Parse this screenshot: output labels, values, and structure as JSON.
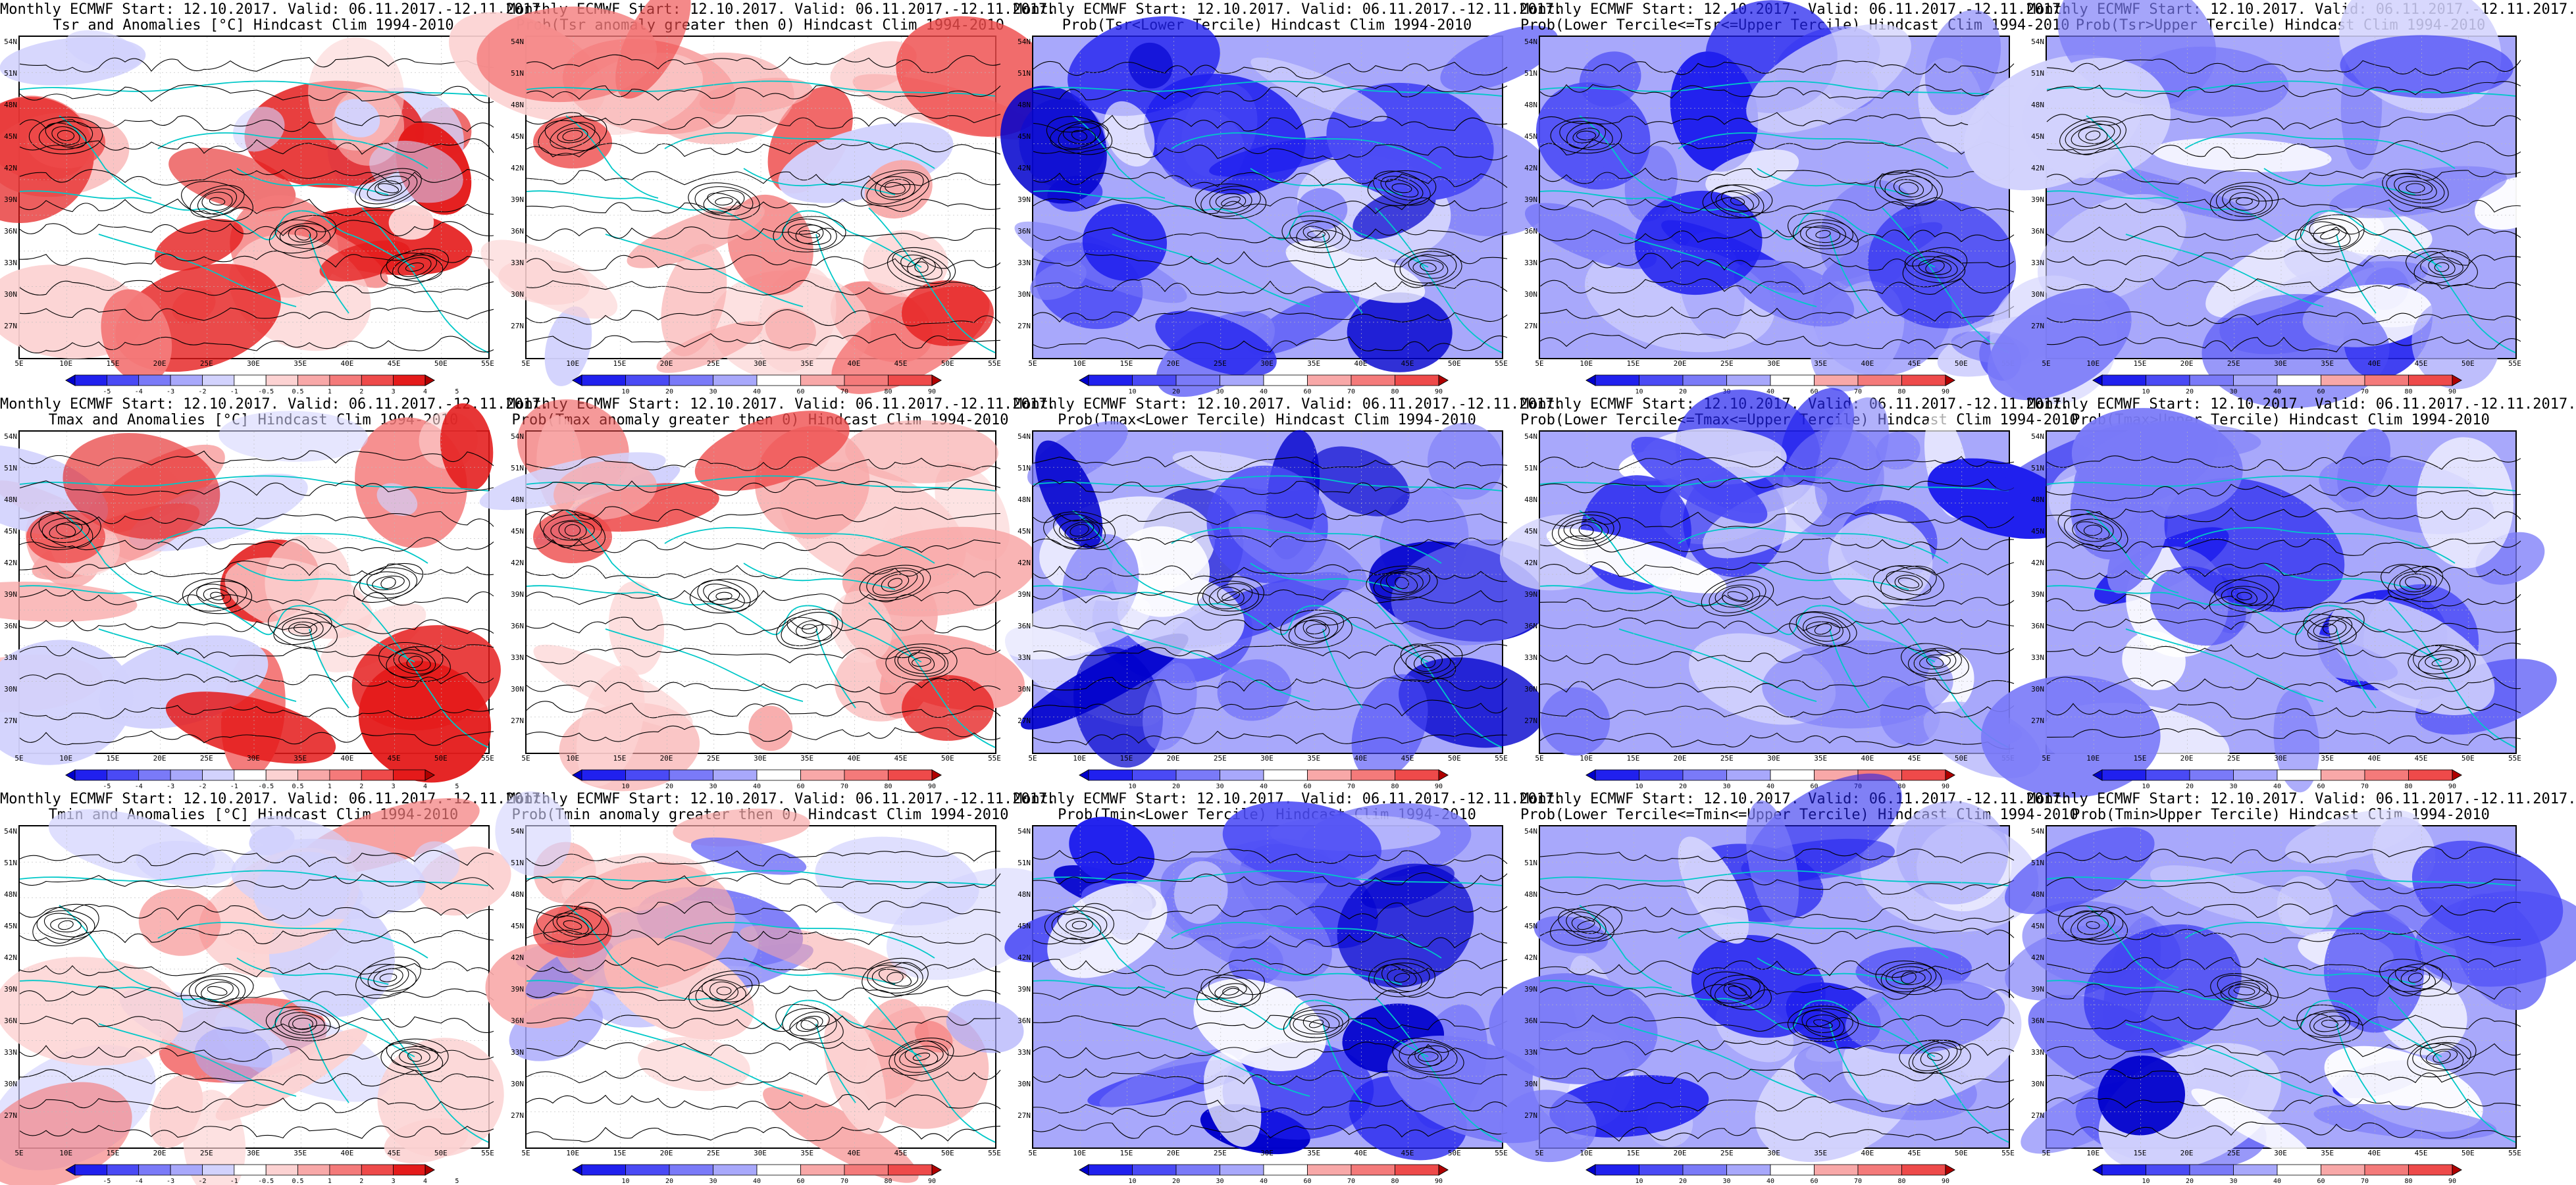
{
  "columns": [
    {
      "key": "mean",
      "colorbar": "diverging",
      "ticks": [
        "-5",
        "-4",
        "-3",
        "-2",
        "-1",
        "-0.5",
        "0.5",
        "1",
        "2",
        "3",
        "4",
        "5"
      ]
    },
    {
      "key": "prob_gt0",
      "colorbar": "probability",
      "ticks": [
        "10",
        "20",
        "30",
        "40",
        "60",
        "70",
        "80",
        "90"
      ]
    },
    {
      "key": "lower",
      "colorbar": "probability",
      "ticks": [
        "10",
        "20",
        "30",
        "40",
        "60",
        "70",
        "80",
        "90"
      ]
    },
    {
      "key": "middle",
      "colorbar": "probability",
      "ticks": [
        "10",
        "20",
        "30",
        "40",
        "60",
        "70",
        "80",
        "90"
      ]
    },
    {
      "key": "upper",
      "colorbar": "probability",
      "ticks": [
        "10",
        "20",
        "30",
        "40",
        "60",
        "70",
        "80",
        "90"
      ]
    }
  ],
  "axes": {
    "y_labels": [
      "54N",
      "51N",
      "48N",
      "45N",
      "42N",
      "39N",
      "36N",
      "33N",
      "30N",
      "27N"
    ],
    "x_labels": [
      "5E",
      "10E",
      "15E",
      "20E",
      "25E",
      "30E",
      "35E",
      "40E",
      "45E",
      "50E",
      "55E"
    ]
  },
  "colors": {
    "contour_black": "#000000",
    "coast_cyan": "#00c8c8",
    "blue_scale": [
      "#0000cc",
      "#2020ee",
      "#4a4af5",
      "#7a7af8",
      "#a8a8fb",
      "#d2d2fd",
      "#ffffff"
    ],
    "red_scale": [
      "#ffffff",
      "#fcd2d2",
      "#f8a8a8",
      "#f47a7a",
      "#ee4a4a",
      "#e41a1a",
      "#b00000"
    ]
  },
  "panels": [
    {
      "id": "r0c0",
      "row": 0,
      "col": 0,
      "title1": "Monthly ECMWF Start: 12.10.2017. Valid: 06.11.2017.-12.11.2017.",
      "title2": "Tsr and Anomalies [°C] Hindcast Clim 1994-2010",
      "theme": "warm-mixed",
      "seed": 11
    },
    {
      "id": "r0c1",
      "row": 0,
      "col": 1,
      "title1": "Monthly ECMWF Start: 12.10.2017. Valid: 06.11.2017.-12.11.2017.",
      "title2": "Prob(Tsr anomaly greater then 0) Hindcast Clim 1994-2010",
      "theme": "warm",
      "seed": 12
    },
    {
      "id": "r0c2",
      "row": 0,
      "col": 2,
      "title1": "Monthly ECMWF Start: 12.10.2017. Valid: 06.11.2017.-12.11.2017.",
      "title2": "Prob(Tsr<Lower Tercile) Hindcast Clim 1994-2010",
      "theme": "blue-strong",
      "seed": 13
    },
    {
      "id": "r0c3",
      "row": 0,
      "col": 3,
      "title1": "Monthly ECMWF Start: 12.10.2017. Valid: 06.11.2017.-12.11.2017.",
      "title2": "Prob(Lower Tercile<=Tsr<=Upper Tercile) Hindcast Clim 1994-2010",
      "theme": "blue-mid",
      "seed": 14
    },
    {
      "id": "r0c4",
      "row": 0,
      "col": 4,
      "title1": "Monthly ECMWF Start: 12.10.2017. Valid: 06.11.2017.-12.11.2017.",
      "title2": "Prob(Tsr>Upper Tercile) Hindcast Clim 1994-2010",
      "theme": "blue-mid",
      "seed": 15
    },
    {
      "id": "r1c0",
      "row": 1,
      "col": 0,
      "title1": "Monthly ECMWF Start: 12.10.2017. Valid: 06.11.2017.-12.11.2017.",
      "title2": "Tmax and Anomalies [°C] Hindcast Clim 1994-2010",
      "theme": "warm-mixed",
      "seed": 21
    },
    {
      "id": "r1c1",
      "row": 1,
      "col": 1,
      "title1": "Monthly ECMWF Start: 12.10.2017. Valid: 06.11.2017.-12.11.2017.",
      "title2": "Prob(Tmax anomaly greater then 0) Hindcast Clim 1994-2010",
      "theme": "warm",
      "seed": 22
    },
    {
      "id": "r1c2",
      "row": 1,
      "col": 2,
      "title1": "Monthly ECMWF Start: 12.10.2017. Valid: 06.11.2017.-12.11.2017.",
      "title2": "Prob(Tmax<Lower Tercile) Hindcast Clim 1994-2010",
      "theme": "blue-strong",
      "seed": 23
    },
    {
      "id": "r1c3",
      "row": 1,
      "col": 3,
      "title1": "Monthly ECMWF Start: 12.10.2017. Valid: 06.11.2017.-12.11.2017.",
      "title2": "Prob(Lower Tercile<=Tmax<=Upper Tercile) Hindcast Clim 1994-2010",
      "theme": "blue-mid",
      "seed": 24
    },
    {
      "id": "r1c4",
      "row": 1,
      "col": 4,
      "title1": "Monthly ECMWF Start: 12.10.2017. Valid: 06.11.2017.-12.11.2017.",
      "title2": "Prob(Tmax>Upper Tercile) Hindcast Clim 1994-2010",
      "theme": "blue-mid",
      "seed": 25
    },
    {
      "id": "r2c0",
      "row": 2,
      "col": 0,
      "title1": "Monthly ECMWF Start: 12.10.2017. Valid: 06.11.2017.-12.11.2017.",
      "title2": "Tmin and Anomalies [°C] Hindcast Clim 1994-2010",
      "theme": "cool-mixed",
      "seed": 31
    },
    {
      "id": "r2c1",
      "row": 2,
      "col": 1,
      "title1": "Monthly ECMWF Start: 12.10.2017. Valid: 06.11.2017.-12.11.2017.",
      "title2": "Prob(Tmin anomaly greater then 0) Hindcast Clim 1994-2010",
      "theme": "warm-mixed-blue",
      "seed": 32
    },
    {
      "id": "r2c2",
      "row": 2,
      "col": 2,
      "title1": "Monthly ECMWF Start: 12.10.2017. Valid: 06.11.2017.-12.11.2017.",
      "title2": "Prob(Tmin<Lower Tercile) Hindcast Clim 1994-2010",
      "theme": "blue-strong",
      "seed": 33
    },
    {
      "id": "r2c3",
      "row": 2,
      "col": 3,
      "title1": "Monthly ECMWF Start: 12.10.2017. Valid: 06.11.2017.-12.11.2017.",
      "title2": "Prob(Lower Tercile<=Tmin<=Upper Tercile) Hindcast Clim 1994-2010",
      "theme": "blue-mid",
      "seed": 34
    },
    {
      "id": "r2c4",
      "row": 2,
      "col": 4,
      "title1": "Monthly ECMWF Start: 12.10.2017. Valid: 06.11.2017.-12.11.2017.",
      "title2": "Prob(Tmin>Upper Tercile) Hindcast Clim 1994-2010",
      "theme": "blue-strong",
      "seed": 35
    }
  ]
}
